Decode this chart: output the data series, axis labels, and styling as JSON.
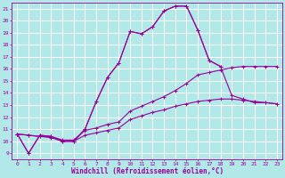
{
  "title": "",
  "xlabel": "Windchill (Refroidissement éolien,°C)",
  "ylabel": "",
  "xlim": [
    -0.5,
    23.5
  ],
  "ylim": [
    8.5,
    21.5
  ],
  "yticks": [
    9,
    10,
    11,
    12,
    13,
    14,
    15,
    16,
    17,
    18,
    19,
    20,
    21
  ],
  "xticks": [
    0,
    1,
    2,
    3,
    4,
    5,
    6,
    7,
    8,
    9,
    10,
    11,
    12,
    13,
    14,
    15,
    16,
    17,
    18,
    19,
    20,
    21,
    22,
    23
  ],
  "bg_color": "#b3e8e8",
  "grid_color": "#d8d8e8",
  "line_color": "#990099",
  "figsize": [
    3.2,
    2.0
  ],
  "dpi": 100,
  "lines": [
    {
      "x": [
        0,
        1,
        2,
        3,
        4,
        5,
        6,
        7,
        8,
        9,
        10,
        11,
        12,
        13,
        14,
        15,
        16,
        17,
        18
      ],
      "y": [
        10.6,
        9.0,
        10.5,
        10.4,
        10.0,
        10.0,
        11.0,
        13.3,
        15.3,
        16.5,
        19.1,
        18.9,
        19.5,
        20.8,
        21.2,
        21.2,
        19.2,
        16.7,
        16.2
      ]
    },
    {
      "x": [
        0,
        1,
        2,
        3,
        4,
        5,
        6,
        7,
        8,
        9,
        10,
        11,
        12,
        13,
        14,
        15,
        16,
        17,
        18,
        19,
        20,
        21,
        22,
        23
      ],
      "y": [
        10.6,
        9.0,
        10.5,
        10.4,
        10.0,
        10.0,
        11.0,
        13.3,
        15.3,
        16.5,
        19.1,
        18.9,
        19.5,
        20.8,
        21.2,
        21.2,
        19.2,
        16.7,
        16.2,
        13.8,
        13.5,
        13.2,
        13.2,
        13.1
      ]
    },
    {
      "x": [
        0,
        1,
        2,
        3,
        4,
        5,
        6,
        7,
        8,
        9,
        10,
        11,
        12,
        13,
        14,
        15,
        16,
        17,
        18,
        19,
        20,
        21,
        22,
        23
      ],
      "y": [
        10.6,
        10.5,
        10.4,
        10.4,
        10.1,
        10.1,
        10.9,
        11.1,
        11.4,
        11.6,
        12.5,
        12.9,
        13.3,
        13.7,
        14.2,
        14.8,
        15.5,
        15.7,
        15.9,
        16.1,
        16.2,
        16.2,
        16.2,
        16.2
      ]
    },
    {
      "x": [
        0,
        1,
        2,
        3,
        4,
        5,
        6,
        7,
        8,
        9,
        10,
        11,
        12,
        13,
        14,
        15,
        16,
        17,
        18,
        19,
        20,
        21,
        22,
        23
      ],
      "y": [
        10.6,
        10.5,
        10.4,
        10.3,
        10.0,
        10.0,
        10.5,
        10.7,
        10.9,
        11.1,
        11.8,
        12.1,
        12.4,
        12.6,
        12.9,
        13.1,
        13.3,
        13.4,
        13.5,
        13.5,
        13.4,
        13.3,
        13.2,
        13.1
      ]
    }
  ]
}
